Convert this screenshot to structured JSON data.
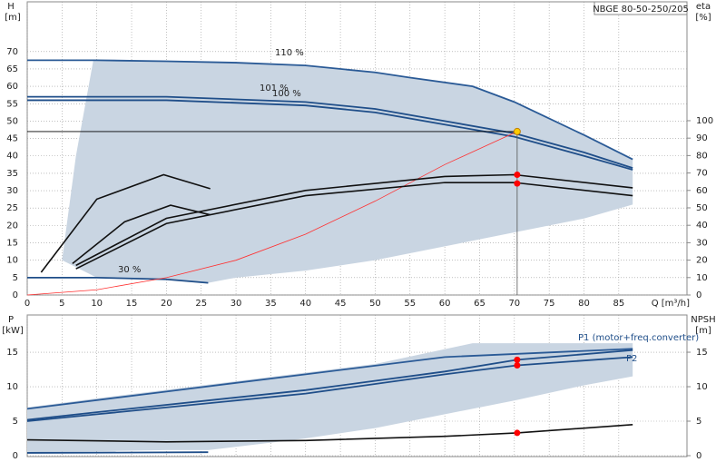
{
  "chart_data": [
    {
      "type": "line",
      "title": "NBGE 80-50-250/205",
      "ylabel": "H",
      "yunit": "[m]",
      "y2label": "eta",
      "y2unit": "[%]",
      "xlabel": "Q [m³/h]",
      "xlim": [
        0,
        94.8
      ],
      "ylim": [
        0,
        84.3
      ],
      "y2lim": [
        0,
        168.2
      ],
      "xticks": [
        0,
        5,
        10,
        15,
        20,
        25,
        30,
        35,
        40,
        45,
        50,
        55,
        60,
        65,
        70,
        75,
        80,
        85
      ],
      "yticks": [
        0,
        5,
        10,
        15,
        20,
        25,
        30,
        35,
        40,
        45,
        50,
        55,
        60,
        65,
        70
      ],
      "y2ticks": [
        0,
        10,
        20,
        30,
        40,
        50,
        60,
        70,
        80,
        90,
        100
      ],
      "grid": true,
      "series": [
        {
          "style": "area",
          "color": "#c9d5e2",
          "x": [
            9.5,
            20,
            30,
            40,
            50,
            55,
            64,
            70,
            80,
            87,
            87,
            80,
            70,
            60,
            50,
            40,
            30,
            26,
            20,
            10,
            5,
            7
          ],
          "values": [
            67.5,
            67.2,
            66.8,
            66,
            64,
            62.5,
            60,
            55.5,
            46,
            39,
            26,
            22,
            18,
            14,
            10,
            7,
            5,
            3.5,
            4.5,
            5,
            10,
            40
          ]
        },
        {
          "name": "110 %",
          "color": "#2a5a96",
          "x": [
            0,
            10,
            20,
            30,
            40,
            50,
            55,
            64,
            70,
            80,
            87
          ],
          "values": [
            67.5,
            67.5,
            67.2,
            66.8,
            66,
            64,
            62.5,
            60,
            55.5,
            46,
            39
          ]
        },
        {
          "name": "101 %",
          "color": "#1f4e89",
          "x": [
            0,
            20,
            40,
            50,
            60,
            70,
            80,
            87
          ],
          "values": [
            57,
            57,
            55.5,
            53.5,
            50,
            46.5,
            41,
            36.5
          ]
        },
        {
          "name": "100 %",
          "color": "#1f4e89",
          "x": [
            0,
            20,
            40,
            50,
            60,
            70,
            80,
            87
          ],
          "values": [
            56,
            56,
            54.5,
            52.5,
            49,
            45.5,
            40,
            36
          ]
        },
        {
          "name": "30 %",
          "color": "#1f4e89",
          "x": [
            0,
            10,
            20,
            26
          ],
          "values": [
            5,
            5,
            4.5,
            3.5
          ]
        },
        {
          "color": "#ff3030",
          "x": [
            0,
            10,
            20,
            30,
            40,
            50,
            60,
            70.4
          ],
          "values": [
            0,
            1.5,
            5,
            10,
            17.5,
            27,
            37.5,
            47
          ]
        },
        {
          "color": "#111111",
          "axis": "y2",
          "x": [
            7,
            20,
            40,
            60,
            70,
            87
          ],
          "values": [
            17,
            44,
            60,
            68,
            69,
            61.5
          ]
        },
        {
          "color": "#111111",
          "axis": "y2",
          "x": [
            7,
            20,
            40,
            60,
            70,
            87
          ],
          "values": [
            15,
            41,
            57,
            64.5,
            64.5,
            57
          ]
        },
        {
          "color": "#111111",
          "axis": "y2",
          "x": [
            2,
            10,
            19.6,
            26.3
          ],
          "values": [
            13,
            55,
            69,
            61
          ]
        },
        {
          "color": "#111111",
          "axis": "y2",
          "x": [
            6.5,
            14,
            20.6,
            26.3
          ],
          "values": [
            18,
            42,
            51.5,
            46
          ]
        },
        {
          "style": "duty",
          "color": "#ffcc00",
          "x": [
            70.4
          ],
          "values": [
            47
          ]
        },
        {
          "style": "points",
          "color": "#ff0000",
          "axis": "y2",
          "x": [
            70.4,
            70.4
          ],
          "values": [
            69,
            64
          ]
        }
      ]
    },
    {
      "type": "line",
      "ylabel": "P",
      "yunit": "[kW]",
      "y2label": "NPSH",
      "y2unit": "[m]",
      "xlim": [
        0,
        94.8
      ],
      "ylim": [
        0,
        20.4
      ],
      "y2lim": [
        0,
        20.4
      ],
      "xtick_labels": false,
      "xticks": [
        0,
        5,
        10,
        15,
        20,
        25,
        30,
        35,
        40,
        45,
        50,
        55,
        60,
        65,
        70,
        75,
        80,
        85
      ],
      "yticks": [
        0,
        5,
        10,
        15
      ],
      "y2ticks": [
        0,
        5,
        10,
        15
      ],
      "grid": true,
      "series": [
        {
          "style": "area",
          "color": "#c9d5e2",
          "x": [
            0,
            10,
            30,
            50,
            64,
            87,
            87,
            80,
            70,
            60,
            50,
            40,
            26,
            20,
            0
          ],
          "values": [
            7,
            8.3,
            10.8,
            13.3,
            16.3,
            16.3,
            11.5,
            10.2,
            8,
            6,
            4,
            2.5,
            0.8,
            0.8,
            0.5
          ]
        },
        {
          "color": "#2a5a96",
          "x": [
            0,
            20,
            40,
            60,
            87
          ],
          "values": [
            6.8,
            9.3,
            11.8,
            14.3,
            15.5
          ]
        },
        {
          "name": "P1 (motor+freq.converter)",
          "color": "#1f4e89",
          "x": [
            0,
            10,
            40,
            60,
            70.4,
            87
          ],
          "values": [
            5.2,
            6.3,
            9.5,
            12.2,
            13.9,
            15.3
          ]
        },
        {
          "name": "P2",
          "color": "#1f4e89",
          "x": [
            0,
            10,
            40,
            60,
            70.4,
            87
          ],
          "values": [
            5,
            6,
            9,
            11.8,
            13.1,
            14.3
          ]
        },
        {
          "color": "#1f4e89",
          "x": [
            0,
            26
          ],
          "values": [
            0.4,
            0.5
          ]
        },
        {
          "color": "#111111",
          "axis": "y2",
          "x": [
            0,
            20,
            40,
            60,
            70.4,
            87
          ],
          "values": [
            2.3,
            2,
            2.2,
            2.8,
            3.3,
            4.5
          ]
        },
        {
          "style": "points",
          "color": "#ff0000",
          "x": [
            70.4,
            70.4
          ],
          "values": [
            13.9,
            13.1
          ]
        },
        {
          "style": "points",
          "color": "#ff0000",
          "axis": "y2",
          "x": [
            70.4
          ],
          "values": [
            3.3
          ]
        }
      ]
    }
  ]
}
